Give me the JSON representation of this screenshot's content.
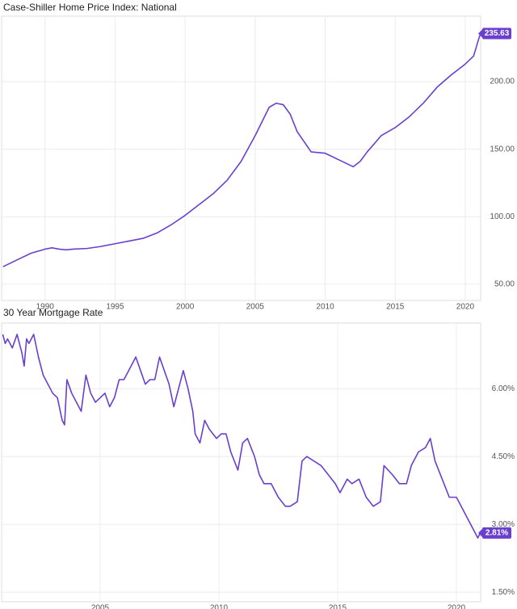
{
  "chart_data": [
    {
      "type": "line",
      "title": "Case-Shiller Home Price Index: National",
      "color": "#6a3fcf",
      "x": [
        1987,
        1988,
        1989,
        1990,
        1990.5,
        1991,
        1991.5,
        1992,
        1993,
        1994,
        1995,
        1996,
        1997,
        1998,
        1999,
        2000,
        2001,
        2002,
        2003,
        2004,
        2005,
        2006,
        2006.5,
        2007,
        2007.5,
        2008,
        2009,
        2010,
        2011,
        2012,
        2012.5,
        2013,
        2014,
        2015,
        2016,
        2017,
        2018,
        2019,
        2020,
        2020.6,
        2021,
        2021.1
      ],
      "values": [
        63,
        68,
        73,
        76,
        77,
        76,
        75.5,
        76,
        76.5,
        78,
        80,
        82,
        84,
        88,
        94,
        101,
        109,
        117,
        127,
        141,
        160,
        181,
        184,
        183,
        176,
        163,
        148,
        147,
        142,
        137,
        141,
        148,
        160,
        166,
        174,
        184,
        196,
        205,
        213,
        219,
        233,
        235.63
      ],
      "xlim": [
        1986.9,
        2021.1
      ],
      "xticks": [
        1990,
        1995,
        2000,
        2005,
        2010,
        2015,
        2020
      ],
      "ylim": [
        38,
        248.5
      ],
      "yticks": [
        {
          "value": 50,
          "label": "50.00"
        },
        {
          "value": 100,
          "label": "100.00"
        },
        {
          "value": 150,
          "label": "150.00"
        },
        {
          "value": 200,
          "label": "200.00"
        }
      ],
      "grid": true
    },
    {
      "type": "line",
      "title": "30 Year Mortgage Rate",
      "color": "#6a3fcf",
      "x": [
        2000.9,
        2001.0,
        2001.1,
        2001.3,
        2001.5,
        2001.7,
        2001.8,
        2001.9,
        2002.0,
        2002.2,
        2002.4,
        2002.6,
        2002.8,
        2003.0,
        2003.2,
        2003.4,
        2003.5,
        2003.6,
        2003.8,
        2004.0,
        2004.2,
        2004.4,
        2004.6,
        2004.8,
        2005.0,
        2005.2,
        2005.4,
        2005.6,
        2005.8,
        2006.0,
        2006.3,
        2006.5,
        2006.7,
        2006.9,
        2007.1,
        2007.3,
        2007.5,
        2007.7,
        2007.9,
        2008.1,
        2008.3,
        2008.5,
        2008.7,
        2008.9,
        2009.0,
        2009.2,
        2009.4,
        2009.6,
        2009.9,
        2010.1,
        2010.3,
        2010.5,
        2010.8,
        2011.0,
        2011.2,
        2011.5,
        2011.7,
        2011.9,
        2012.2,
        2012.5,
        2012.8,
        2013.0,
        2013.3,
        2013.5,
        2013.7,
        2014.0,
        2014.3,
        2014.6,
        2014.9,
        2015.1,
        2015.4,
        2015.6,
        2015.9,
        2016.2,
        2016.5,
        2016.8,
        2016.95,
        2017.3,
        2017.6,
        2017.9,
        2018.1,
        2018.4,
        2018.7,
        2018.9,
        2019.1,
        2019.4,
        2019.7,
        2020.0,
        2020.3,
        2020.6,
        2020.9,
        2021.0
      ],
      "values": [
        7.2,
        7.0,
        7.1,
        6.9,
        7.2,
        6.8,
        6.5,
        7.1,
        7.0,
        7.2,
        6.7,
        6.3,
        6.1,
        5.9,
        5.8,
        5.3,
        5.2,
        6.2,
        5.9,
        5.7,
        5.5,
        6.3,
        5.9,
        5.7,
        5.8,
        5.9,
        5.6,
        5.8,
        6.2,
        6.2,
        6.5,
        6.7,
        6.4,
        6.1,
        6.2,
        6.2,
        6.7,
        6.4,
        6.1,
        5.6,
        6.0,
        6.4,
        6.0,
        5.5,
        5.0,
        4.8,
        5.3,
        5.1,
        4.9,
        5.0,
        5.0,
        4.6,
        4.2,
        4.8,
        4.9,
        4.5,
        4.1,
        3.9,
        3.9,
        3.6,
        3.4,
        3.4,
        3.5,
        4.4,
        4.5,
        4.4,
        4.3,
        4.1,
        3.9,
        3.7,
        4.0,
        3.9,
        4.0,
        3.6,
        3.4,
        3.5,
        4.3,
        4.1,
        3.9,
        3.9,
        4.3,
        4.6,
        4.7,
        4.9,
        4.4,
        4.0,
        3.6,
        3.6,
        3.3,
        3.0,
        2.7,
        2.81
      ],
      "value_labels": [
        null,
        null,
        null,
        null,
        null,
        null,
        null,
        null,
        null,
        null,
        null,
        null,
        null,
        null,
        null,
        null,
        null,
        null,
        null,
        null,
        null,
        null,
        null,
        null,
        null,
        null,
        null,
        null,
        null,
        null,
        null,
        null,
        null,
        null,
        null,
        null,
        null,
        null,
        null,
        null,
        null,
        null,
        null,
        null,
        null,
        null,
        null,
        null,
        null,
        null,
        null,
        null,
        null,
        null,
        null,
        null,
        null,
        null,
        null,
        null,
        null,
        null,
        null,
        null,
        null,
        null,
        null,
        null,
        null,
        null,
        null,
        null,
        null,
        null,
        null,
        null,
        null,
        null,
        null,
        null,
        null,
        null,
        null,
        null,
        null,
        null,
        null,
        null,
        null,
        null,
        null,
        "2.81%"
      ],
      "xlim": [
        2000.85,
        2021.02
      ],
      "xticks": [
        2005,
        2010,
        2015,
        2020
      ],
      "ylim": [
        1.29,
        7.45
      ],
      "yticks": [
        {
          "value": 1.5,
          "label": "1.50%"
        },
        {
          "value": 3,
          "label": "3.00%"
        },
        {
          "value": 4.5,
          "label": "4.50%"
        },
        {
          "value": 6,
          "label": "6.00%"
        }
      ],
      "grid": true
    }
  ]
}
